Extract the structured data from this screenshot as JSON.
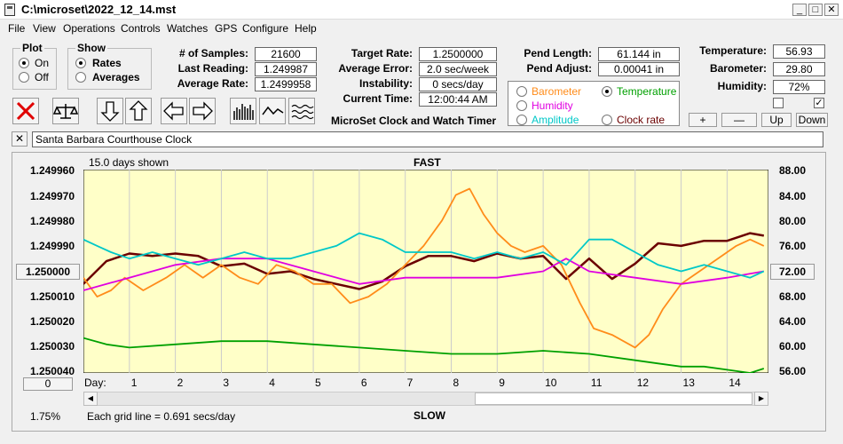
{
  "window": {
    "title": "C:\\microset\\2022_12_14.mst"
  },
  "menu": [
    "File",
    "View",
    "Operations",
    "Controls",
    "Watches",
    "GPS",
    "Configure",
    "Help"
  ],
  "plot_group": {
    "title": "Plot",
    "on": "On",
    "off": "Off",
    "selected": "On"
  },
  "show_group": {
    "title": "Show",
    "rates": "Rates",
    "averages": "Averages",
    "selected": "Rates"
  },
  "stats": {
    "samples_label": "# of Samples:",
    "samples": "21600",
    "last_reading_label": "Last Reading:",
    "last_reading": "1.249987",
    "average_rate_label": "Average Rate:",
    "average_rate": "1.2499958",
    "target_rate_label": "Target Rate:",
    "target_rate": "1.2500000",
    "average_error_label": "Average Error:",
    "average_error": "2.0 sec/week",
    "instability_label": "Instability:",
    "instability": "0 secs/day",
    "current_time_label": "Current Time:",
    "current_time": "12:00:44 AM",
    "pend_length_label": "Pend Length:",
    "pend_length": "61.144 in",
    "pend_adjust_label": "Pend Adjust:",
    "pend_adjust": "0.00041 in",
    "temperature_label": "Temperature:",
    "temperature": "56.93",
    "barometer_label": "Barometer:",
    "barometer": "29.80",
    "humidity_label": "Humidity:",
    "humidity": "72%"
  },
  "app_title": "MicroSet Clock and Watch Timer",
  "sensor_select": {
    "barometer": "Barometer",
    "temperature": "Temperature",
    "humidity": "Humidity",
    "amplitude": "Amplitude",
    "clock_rate": "Clock rate",
    "selected": "Temperature",
    "colors": {
      "barometer": "#ff8c1a",
      "temperature": "#00a000",
      "humidity": "#e000e0",
      "amplitude": "#00c8c8",
      "clock_rate": "#6b0000"
    }
  },
  "adjust_buttons": {
    "plus": "+",
    "minus": "—",
    "up": "Up",
    "down": "Down"
  },
  "clock_name": "Santa Barbara Courthouse Clock",
  "chart_header": {
    "days_shown": "15.0 days shown",
    "fast": "FAST",
    "slow": "SLOW"
  },
  "left_axis_center_button": "1.250000",
  "right_axis_center_button": "72.00",
  "zero_button": "0",
  "footer": {
    "percent": "1.75%",
    "grid_note": "Each grid line = 0.691 secs/day",
    "day_label": "Day:"
  },
  "chart_data": {
    "type": "line",
    "x_label": "Day",
    "x_ticks": [
      1,
      2,
      3,
      4,
      5,
      6,
      7,
      8,
      9,
      10,
      11,
      12,
      13,
      14
    ],
    "xlim": [
      0,
      14.9
    ],
    "left_axis": {
      "ticks": [
        "1.249960",
        "1.249970",
        "1.249980",
        "1.249990",
        "1.250000",
        "1.250010",
        "1.250020",
        "1.250030",
        "1.250040"
      ],
      "range": [
        1.24996,
        1.25004
      ],
      "inverted": true
    },
    "right_axis": {
      "ticks": [
        "88.00",
        "84.00",
        "80.00",
        "76.00",
        "72.00",
        "68.00",
        "64.00",
        "60.00",
        "56.00"
      ],
      "range": [
        56,
        88
      ]
    },
    "series": [
      {
        "name": "Clock rate",
        "axis": "left",
        "color": "#6b0000",
        "x": [
          0,
          0.5,
          1,
          1.5,
          2,
          2.5,
          3,
          3.5,
          4,
          4.5,
          5,
          5.5,
          6,
          6.5,
          7,
          7.5,
          8,
          8.5,
          9,
          9.5,
          10,
          10.5,
          11,
          11.5,
          12,
          12.5,
          13,
          13.5,
          14,
          14.5,
          14.8
        ],
        "y": [
          1.250005,
          1.249996,
          1.249993,
          1.249994,
          1.249993,
          1.249994,
          1.249998,
          1.249997,
          1.250001,
          1.25,
          1.250003,
          1.250005,
          1.250007,
          1.250004,
          1.249998,
          1.249994,
          1.249994,
          1.249996,
          1.249993,
          1.249995,
          1.249994,
          1.250003,
          1.249995,
          1.250003,
          1.249997,
          1.249989,
          1.24999,
          1.249988,
          1.249988,
          1.249985,
          1.249986
        ]
      },
      {
        "name": "Barometer",
        "axis": "right",
        "color": "#ff8c1a",
        "x": [
          0,
          0.3,
          0.6,
          0.9,
          1.3,
          1.8,
          2.2,
          2.6,
          3,
          3.4,
          3.8,
          4.2,
          4.6,
          5,
          5.4,
          5.8,
          6.2,
          6.6,
          7,
          7.4,
          7.8,
          8.1,
          8.4,
          8.7,
          9,
          9.3,
          9.6,
          10,
          10.4,
          10.8,
          11.1,
          11.5,
          12,
          12.3,
          12.6,
          13,
          13.4,
          13.8,
          14.2,
          14.5,
          14.8
        ],
        "y": [
          71,
          68,
          69,
          71,
          69,
          71,
          73,
          71,
          73,
          71,
          70,
          73,
          72,
          70,
          70,
          67,
          68,
          70,
          73,
          76,
          80,
          84,
          85,
          81,
          78,
          76,
          75,
          76,
          73,
          67,
          63,
          62,
          60,
          62,
          66,
          70,
          72,
          74,
          76,
          77,
          76
        ]
      },
      {
        "name": "Humidity",
        "axis": "right",
        "color": "#e000e0",
        "x": [
          0,
          1,
          2,
          3,
          4,
          5,
          6,
          7,
          8,
          9,
          10,
          10.5,
          11,
          12,
          13,
          14,
          14.8
        ],
        "y": [
          69,
          71,
          73,
          74,
          74,
          72,
          70,
          71,
          71,
          71,
          72,
          74,
          72,
          71,
          70,
          71,
          72
        ]
      },
      {
        "name": "Amplitude",
        "axis": "right",
        "color": "#00c8c8",
        "x": [
          0,
          0.3,
          0.6,
          1,
          1.5,
          2,
          2.5,
          3,
          3.5,
          4,
          4.5,
          5,
          5.5,
          6,
          6.5,
          7,
          7.5,
          8,
          8.5,
          9,
          9.5,
          10,
          10.5,
          11,
          11.5,
          12,
          12.5,
          13,
          13.5,
          14,
          14.5,
          14.8
        ],
        "y": [
          77,
          76,
          75,
          74,
          75,
          74,
          73,
          74,
          75,
          74,
          74,
          75,
          76,
          78,
          77,
          75,
          75,
          75,
          74,
          75,
          74,
          75,
          73,
          77,
          77,
          75,
          73,
          72,
          73,
          72,
          71,
          72
        ]
      },
      {
        "name": "Temperature",
        "axis": "right",
        "color": "#00a000",
        "x": [
          0,
          0.5,
          1,
          2,
          3,
          4,
          5,
          6,
          7,
          8,
          9,
          10,
          11,
          12,
          12.5,
          13,
          13.5,
          14,
          14.5,
          14.8
        ],
        "y": [
          61.5,
          60.5,
          60,
          60.5,
          61,
          61,
          60.5,
          60,
          59.5,
          59,
          59,
          59.5,
          59,
          58,
          57.5,
          57,
          57,
          56.5,
          56,
          56.7
        ]
      }
    ]
  }
}
